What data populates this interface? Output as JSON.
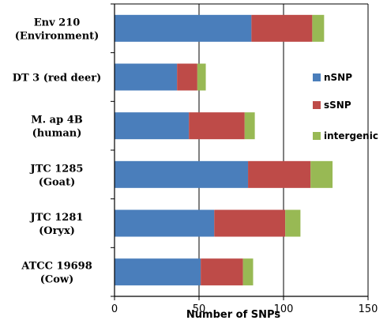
{
  "chart_data": {
    "type": "bar",
    "orientation": "horizontal",
    "stacked": true,
    "categories": [
      [
        "Env 210",
        "(Environment)"
      ],
      [
        "DT 3 (red deer)"
      ],
      [
        "M. ap 4B",
        "(human)"
      ],
      [
        "JTC 1285",
        "(Goat)"
      ],
      [
        "JTC 1281",
        "(Oryx)"
      ],
      [
        "ATCC 19698",
        "(Cow)"
      ]
    ],
    "series": [
      {
        "name": "nSNP",
        "color": "#4a7ebb",
        "values": [
          81,
          37,
          44,
          79,
          59,
          51
        ]
      },
      {
        "name": "sSNP",
        "color": "#be4b48",
        "values": [
          36,
          12,
          33,
          37,
          42,
          25
        ]
      },
      {
        "name": "intergenic",
        "color": "#98b954",
        "values": [
          7,
          5,
          6,
          13,
          9,
          6
        ]
      }
    ],
    "xlabel": "Number  of SNPs",
    "xlim": [
      0,
      150
    ],
    "xticks": [
      0,
      50,
      100,
      150
    ],
    "grid": "vertical",
    "legend": "right"
  }
}
